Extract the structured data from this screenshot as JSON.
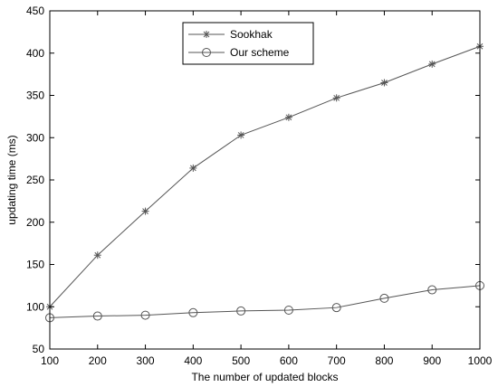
{
  "chart_data": {
    "type": "line",
    "title": "",
    "xlabel": "The number of updated blocks",
    "ylabel": "updating time (ms)",
    "x": [
      100,
      200,
      300,
      400,
      500,
      600,
      700,
      800,
      900,
      1000
    ],
    "xlim": [
      100,
      1000
    ],
    "ylim": [
      50,
      450
    ],
    "xticks": [
      100,
      200,
      300,
      400,
      500,
      600,
      700,
      800,
      900,
      1000
    ],
    "yticks": [
      50,
      100,
      150,
      200,
      250,
      300,
      350,
      400,
      450
    ],
    "grid": false,
    "legend_position": "top-center",
    "series": [
      {
        "name": "Sookhak",
        "marker": "star",
        "color": "#555555",
        "values": [
          100,
          161,
          213,
          264,
          303,
          324,
          347,
          365,
          387,
          408
        ]
      },
      {
        "name": "Our scheme",
        "marker": "circle",
        "color": "#555555",
        "values": [
          87,
          89,
          90,
          93,
          95,
          96,
          99,
          110,
          120,
          125
        ]
      }
    ]
  }
}
